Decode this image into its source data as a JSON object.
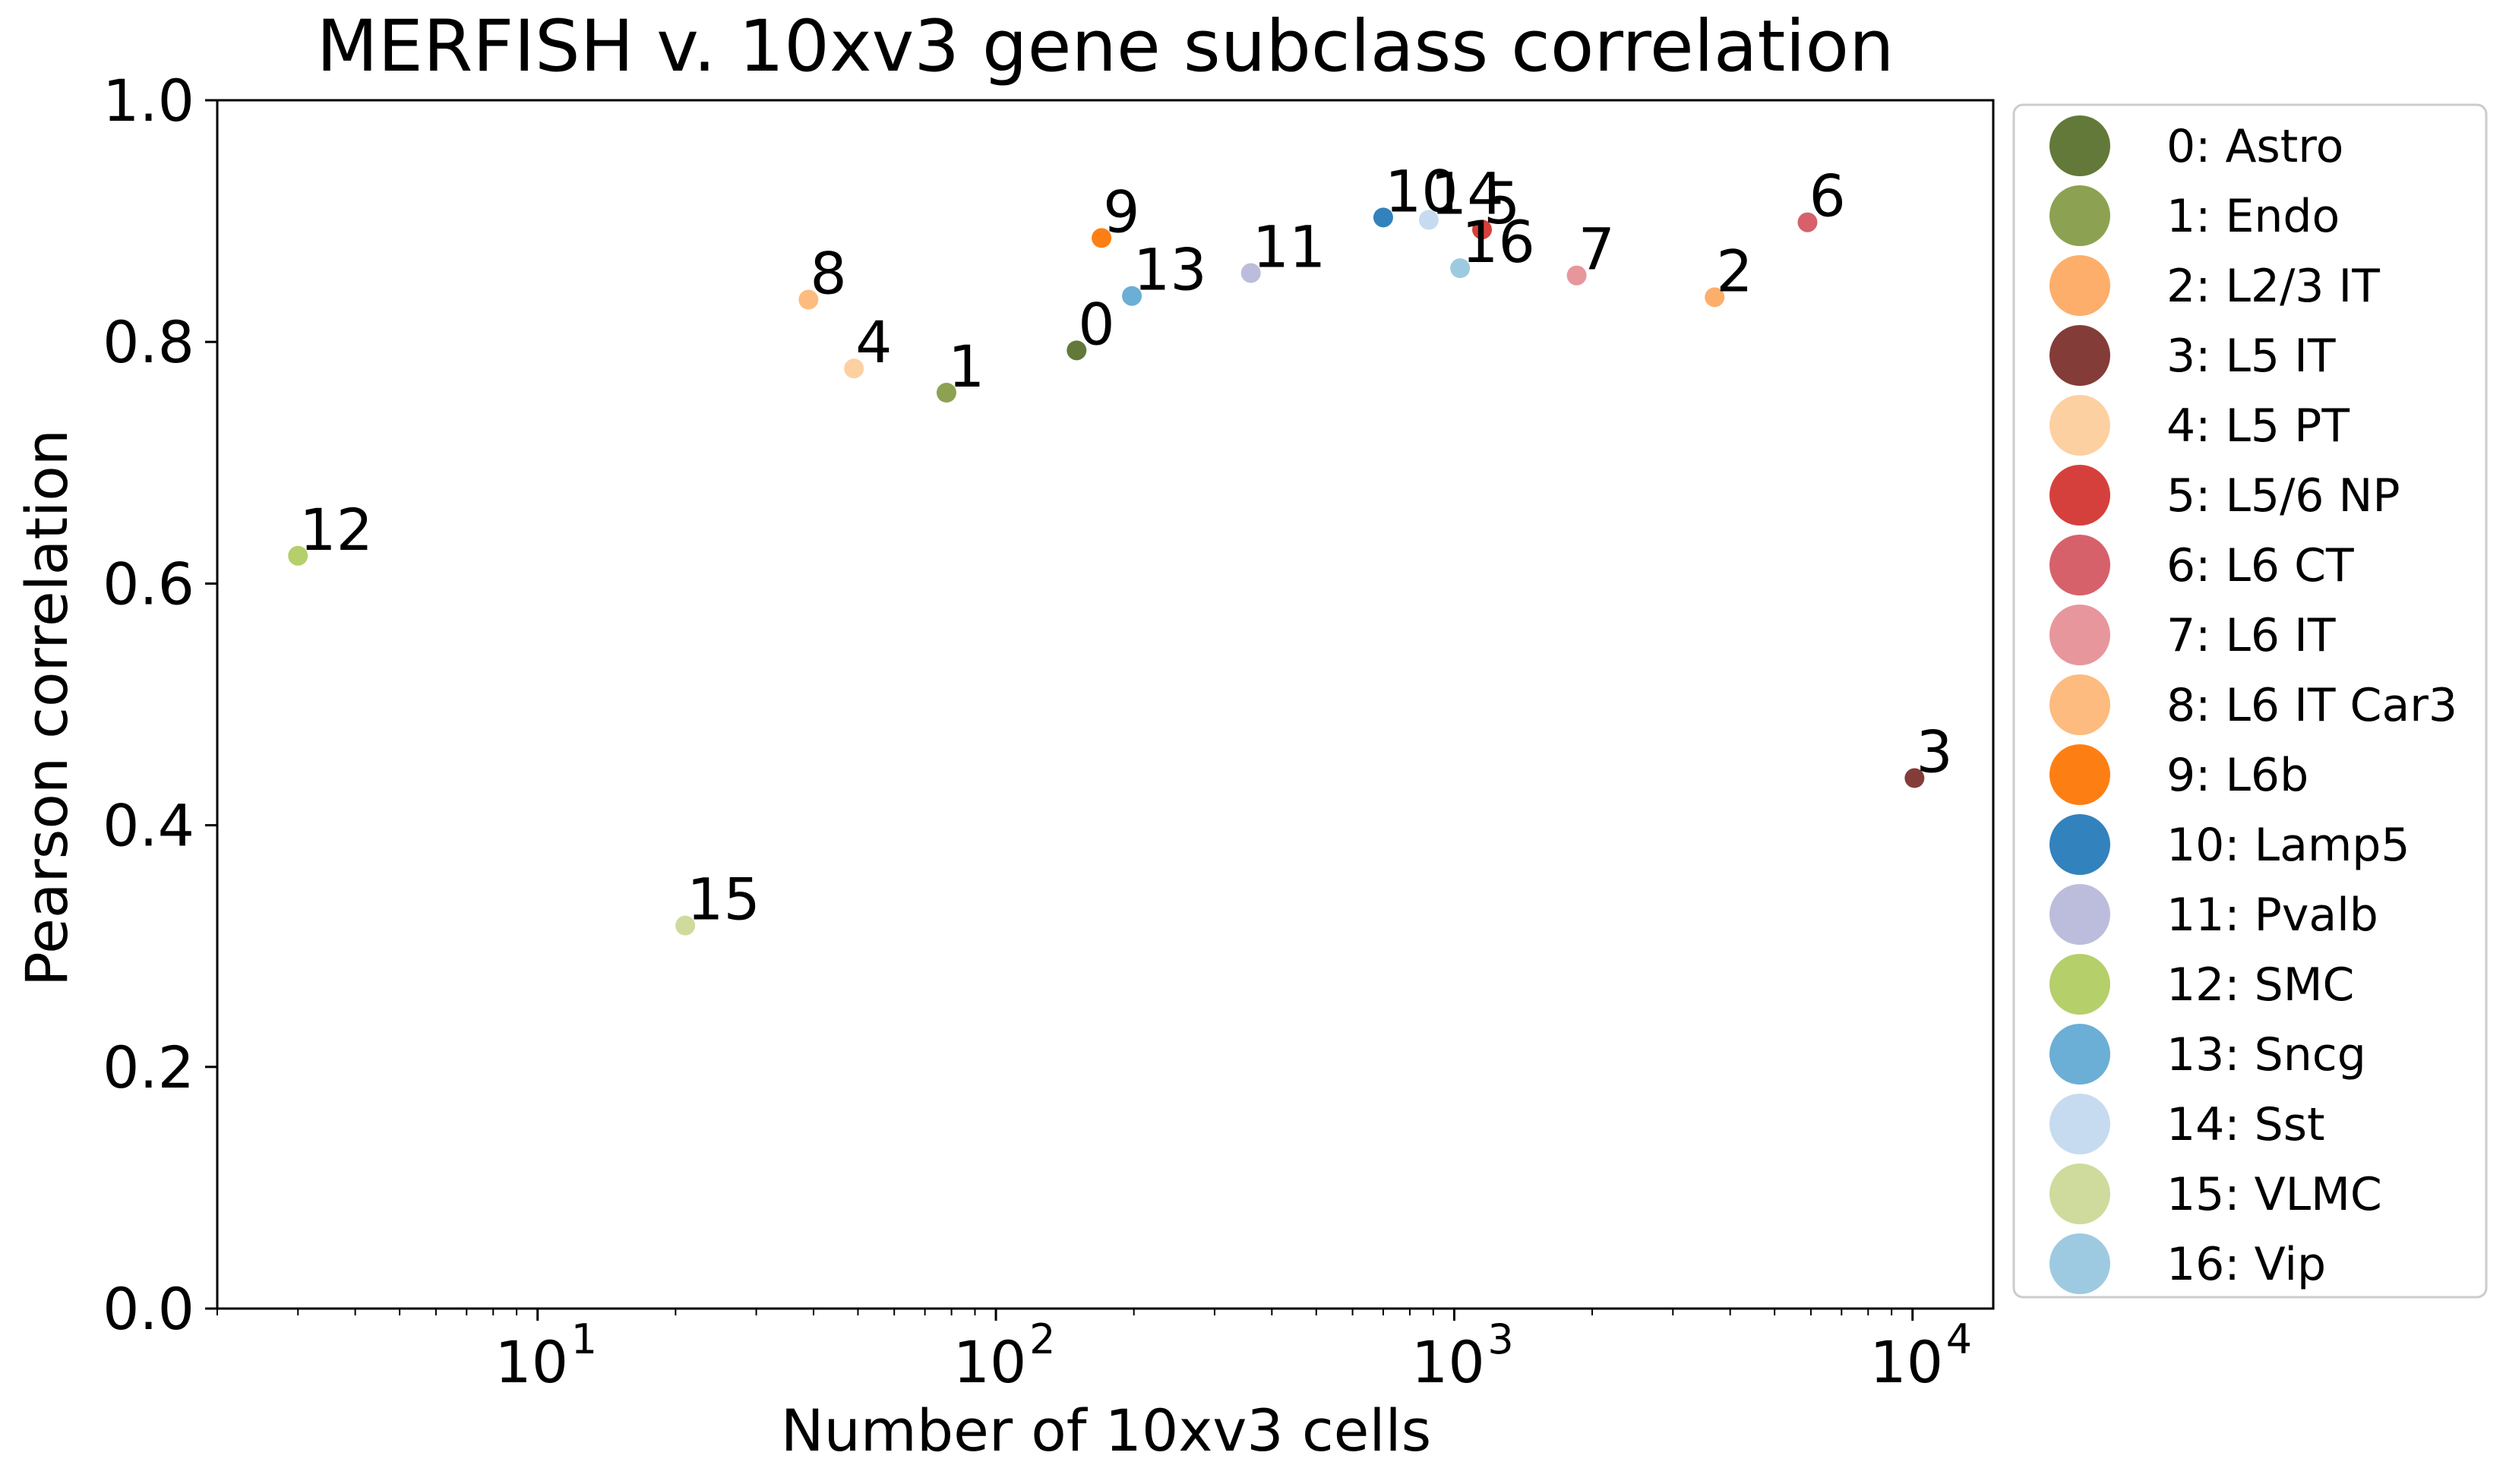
{
  "chart_data": {
    "type": "scatter",
    "title": "MERFISH v. 10xv3 gene subclass correlation",
    "xlabel": "Number of 10xv3 cells",
    "ylabel": "Pearson correlation",
    "xscale": "log",
    "xlim": [
      2,
      15000
    ],
    "ylim": [
      0.0,
      1.0
    ],
    "x_ticks": [
      {
        "value": 10,
        "base": "10",
        "exp": "1"
      },
      {
        "value": 100,
        "base": "10",
        "exp": "2"
      },
      {
        "value": 1000,
        "base": "10",
        "exp": "3"
      },
      {
        "value": 10000,
        "base": "10",
        "exp": "4"
      }
    ],
    "y_ticks": [
      "0.0",
      "0.2",
      "0.4",
      "0.6",
      "0.8",
      "1.0"
    ],
    "grid": false,
    "legend_position": "outside-right",
    "points": [
      {
        "id": "0",
        "label": "0: Astro",
        "x": 150,
        "y": 0.793,
        "color": "#637939"
      },
      {
        "id": "1",
        "label": "1: Endo",
        "x": 78,
        "y": 0.758,
        "color": "#8ca252"
      },
      {
        "id": "2",
        "label": "2: L2/3 IT",
        "x": 3700,
        "y": 0.837,
        "color": "#fdae6b"
      },
      {
        "id": "3",
        "label": "3: L5 IT",
        "x": 10100,
        "y": 0.439,
        "color": "#843c39"
      },
      {
        "id": "4",
        "label": "4: L5 PT",
        "x": 49,
        "y": 0.778,
        "color": "#fdd0a2"
      },
      {
        "id": "5",
        "label": "5: L5/6 NP",
        "x": 1150,
        "y": 0.893,
        "color": "#d6403c"
      },
      {
        "id": "6",
        "label": "6: L6 CT",
        "x": 5900,
        "y": 0.899,
        "color": "#d6616b"
      },
      {
        "id": "7",
        "label": "7: L6 IT",
        "x": 1850,
        "y": 0.855,
        "color": "#e7969c"
      },
      {
        "id": "8",
        "label": "8: L6 IT Car3",
        "x": 39,
        "y": 0.835,
        "color": "#fdbb7f"
      },
      {
        "id": "9",
        "label": "9: L6b",
        "x": 170,
        "y": 0.886,
        "color": "#fd7f13"
      },
      {
        "id": "10",
        "label": "10: Lamp5",
        "x": 700,
        "y": 0.903,
        "color": "#3282bd"
      },
      {
        "id": "11",
        "label": "11: Pvalb",
        "x": 360,
        "y": 0.857,
        "color": "#bcbddc"
      },
      {
        "id": "12",
        "label": "12: SMC",
        "x": 3,
        "y": 0.623,
        "color": "#b5cf6b"
      },
      {
        "id": "13",
        "label": "13: Sncg",
        "x": 198,
        "y": 0.838,
        "color": "#6baed6"
      },
      {
        "id": "14",
        "label": "14: Sst",
        "x": 880,
        "y": 0.901,
        "color": "#c6dbef"
      },
      {
        "id": "15",
        "label": "15: VLMC",
        "x": 21,
        "y": 0.317,
        "color": "#cedb9c"
      },
      {
        "id": "16",
        "label": "16: Vip",
        "x": 1030,
        "y": 0.861,
        "color": "#9ecae1"
      }
    ]
  }
}
